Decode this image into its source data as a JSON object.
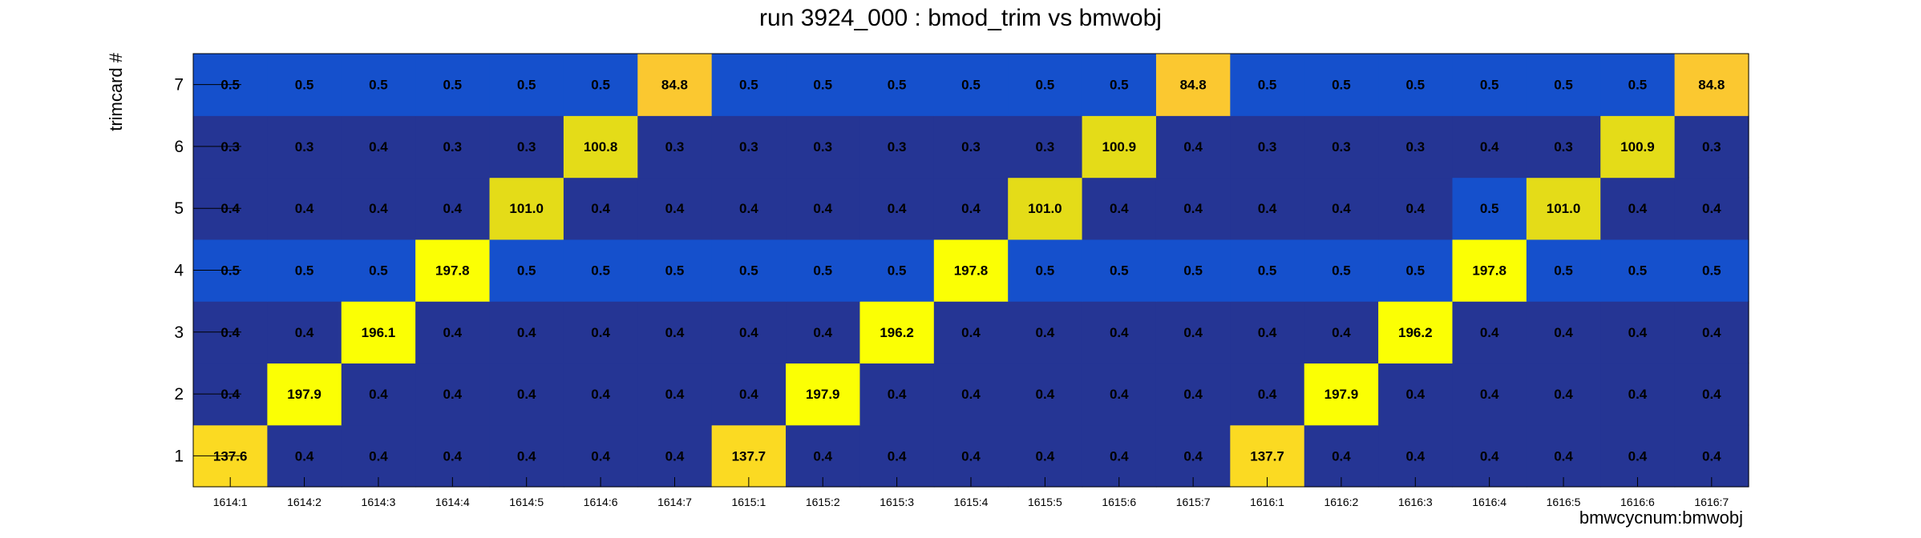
{
  "chart_data": {
    "type": "heatmap",
    "title": "run 3924_000 : bmod_trim vs bmwobj",
    "xlabel": "bmwcycnum:bmwobj",
    "ylabel": "trimcard #",
    "x_categories": [
      "1614:1",
      "1614:2",
      "1614:3",
      "1614:4",
      "1614:5",
      "1614:6",
      "1614:7",
      "1615:1",
      "1615:2",
      "1615:3",
      "1615:4",
      "1615:5",
      "1615:6",
      "1615:7",
      "1616:1",
      "1616:2",
      "1616:3",
      "1616:4",
      "1616:5",
      "1616:6",
      "1616:7"
    ],
    "y_categories": [
      "1",
      "2",
      "3",
      "4",
      "5",
      "6",
      "7"
    ],
    "values": [
      [
        "137.6",
        "0.4",
        "0.4",
        "0.4",
        "0.4",
        "0.4",
        "0.4",
        "137.7",
        "0.4",
        "0.4",
        "0.4",
        "0.4",
        "0.4",
        "0.4",
        "137.7",
        "0.4",
        "0.4",
        "0.4",
        "0.4",
        "0.4",
        "0.4"
      ],
      [
        "0.4",
        "197.9",
        "0.4",
        "0.4",
        "0.4",
        "0.4",
        "0.4",
        "0.4",
        "197.9",
        "0.4",
        "0.4",
        "0.4",
        "0.4",
        "0.4",
        "0.4",
        "197.9",
        "0.4",
        "0.4",
        "0.4",
        "0.4",
        "0.4"
      ],
      [
        "0.4",
        "0.4",
        "196.1",
        "0.4",
        "0.4",
        "0.4",
        "0.4",
        "0.4",
        "0.4",
        "196.2",
        "0.4",
        "0.4",
        "0.4",
        "0.4",
        "0.4",
        "0.4",
        "196.2",
        "0.4",
        "0.4",
        "0.4",
        "0.4"
      ],
      [
        "0.5",
        "0.5",
        "0.5",
        "197.8",
        "0.5",
        "0.5",
        "0.5",
        "0.5",
        "0.5",
        "0.5",
        "197.8",
        "0.5",
        "0.5",
        "0.5",
        "0.5",
        "0.5",
        "0.5",
        "197.8",
        "0.5",
        "0.5",
        "0.5"
      ],
      [
        "0.4",
        "0.4",
        "0.4",
        "0.4",
        "101.0",
        "0.4",
        "0.4",
        "0.4",
        "0.4",
        "0.4",
        "0.4",
        "101.0",
        "0.4",
        "0.4",
        "0.4",
        "0.4",
        "0.4",
        "0.5",
        "101.0",
        "0.4",
        "0.4"
      ],
      [
        "0.3",
        "0.3",
        "0.4",
        "0.3",
        "0.3",
        "100.8",
        "0.3",
        "0.3",
        "0.3",
        "0.3",
        "0.3",
        "0.3",
        "100.9",
        "0.4",
        "0.3",
        "0.3",
        "0.3",
        "0.4",
        "0.3",
        "100.9",
        "0.3"
      ],
      [
        "0.5",
        "0.5",
        "0.5",
        "0.5",
        "0.5",
        "0.5",
        "84.8",
        "0.5",
        "0.5",
        "0.5",
        "0.5",
        "0.5",
        "0.5",
        "84.8",
        "0.5",
        "0.5",
        "0.5",
        "0.5",
        "0.5",
        "0.5",
        "84.8"
      ]
    ],
    "colors": {
      "low": "#253594",
      "mid": "#1550cc",
      "peak_84_8": "#fbc830",
      "peak_100": "#e4dc18",
      "peak_137": "#fbda22",
      "peak_196": "#fbff04",
      "frame": "#000000"
    },
    "grid": false,
    "legend": "none"
  }
}
